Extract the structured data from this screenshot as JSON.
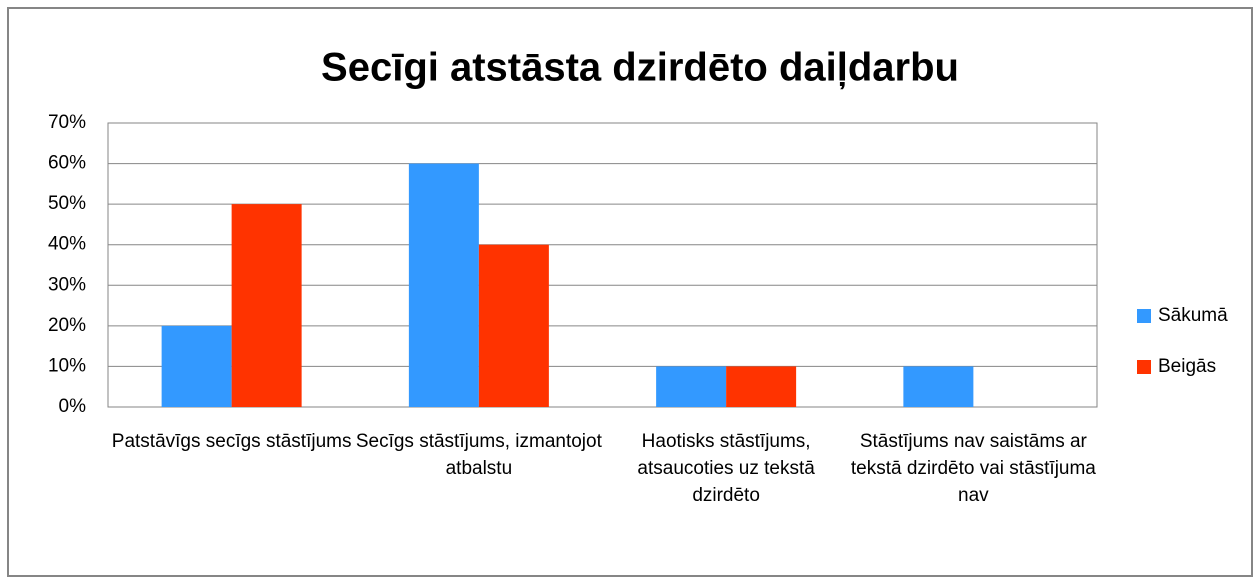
{
  "chart_data": {
    "type": "bar",
    "title": "Secīgi atstāsta dzirdēto daiļdarbu",
    "categories": [
      "Patstāvīgs secīgs stāstījums",
      "Secīgs stāstījums, izmantojot atbalstu",
      "Haotisks stāstījums, atsaucoties uz tekstā dzirdēto",
      "Stāstījums nav saistāms ar tekstā dzirdēto vai stāstījuma nav"
    ],
    "series": [
      {
        "name": "Sākumā",
        "color": "#3399ff",
        "values": [
          20,
          60,
          10,
          10
        ]
      },
      {
        "name": "Beigās",
        "color": "#ff3300",
        "values": [
          50,
          40,
          10,
          0
        ]
      }
    ],
    "ylim": [
      0,
      70
    ],
    "yticks": [
      {
        "value": 0,
        "label": "0%"
      },
      {
        "value": 10,
        "label": "10%"
      },
      {
        "value": 20,
        "label": "20%"
      },
      {
        "value": 30,
        "label": "30%"
      },
      {
        "value": 40,
        "label": "40%"
      },
      {
        "value": 50,
        "label": "50%"
      },
      {
        "value": 60,
        "label": "60%"
      },
      {
        "value": 70,
        "label": "70%"
      }
    ],
    "grid": true,
    "legend": "right"
  }
}
